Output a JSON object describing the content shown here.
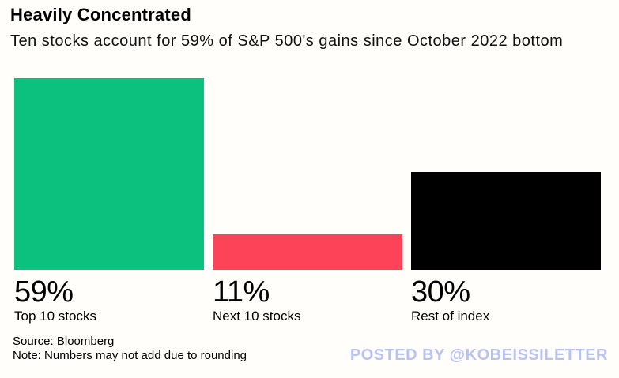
{
  "header": {
    "title": "Heavily Concentrated",
    "subtitle": "Ten stocks account for 59% of S&P 500's gains since October 2022 bottom"
  },
  "chart_data": {
    "type": "bar",
    "orientation": "vertical",
    "categories": [
      "Top 10 stocks",
      "Next 10 stocks",
      "Rest of index"
    ],
    "values": [
      59,
      11,
      30
    ],
    "value_labels": [
      "59%",
      "11%",
      "30%"
    ],
    "bar_colors": [
      "#0bc17d",
      "#fc4357",
      "#000000"
    ],
    "unit": "%",
    "title": "Heavily Concentrated",
    "subtitle": "Ten stocks account for 59% of S&P 500's gains since October 2022 bottom",
    "ylim": [
      0,
      59
    ],
    "grid": false,
    "legend": false,
    "axes_visible": false
  },
  "footer": {
    "source": "Source: Bloomberg",
    "note": "Note: Numbers may not add due to rounding"
  },
  "watermark": {
    "text": "POSTED BY @KOBEISSILETTER",
    "color": "#b9c3f2"
  }
}
